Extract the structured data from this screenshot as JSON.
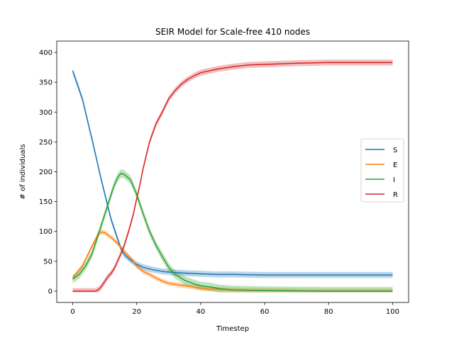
{
  "chart_data": {
    "type": "line",
    "title": "SEIR Model for Scale-free 410 nodes",
    "xlabel": "Timestep",
    "ylabel": "# of individuals",
    "xlim": [
      -5,
      105
    ],
    "ylim": [
      -19,
      419
    ],
    "xticks": [
      0,
      20,
      40,
      60,
      80,
      100
    ],
    "yticks": [
      0,
      50,
      100,
      150,
      200,
      250,
      300,
      350,
      400
    ],
    "grid": false,
    "legend_position": "center-right",
    "series": [
      {
        "name": "S",
        "color": "#1f77b4",
        "band": 5,
        "points": [
          [
            0,
            369
          ],
          [
            3,
            322
          ],
          [
            6,
            255
          ],
          [
            9,
            185
          ],
          [
            12,
            120
          ],
          [
            14,
            88
          ],
          [
            15,
            72
          ],
          [
            16,
            62
          ],
          [
            18,
            52
          ],
          [
            20,
            45
          ],
          [
            22,
            40
          ],
          [
            25,
            36
          ],
          [
            28,
            33
          ],
          [
            32,
            31
          ],
          [
            36,
            30
          ],
          [
            40,
            29
          ],
          [
            45,
            28
          ],
          [
            50,
            28
          ],
          [
            60,
            27
          ],
          [
            70,
            27
          ],
          [
            80,
            27
          ],
          [
            90,
            27
          ],
          [
            100,
            27
          ]
        ]
      },
      {
        "name": "E",
        "color": "#ff7f0e",
        "band": 4,
        "points": [
          [
            0,
            22
          ],
          [
            3,
            42
          ],
          [
            6,
            75
          ],
          [
            8,
            96
          ],
          [
            9,
            99
          ],
          [
            10,
            98
          ],
          [
            12,
            90
          ],
          [
            14,
            80
          ],
          [
            16,
            67
          ],
          [
            18,
            56
          ],
          [
            20,
            42
          ],
          [
            22,
            33
          ],
          [
            24,
            28
          ],
          [
            26,
            22
          ],
          [
            28,
            17
          ],
          [
            30,
            13
          ],
          [
            35,
            9
          ],
          [
            40,
            5
          ],
          [
            45,
            3
          ],
          [
            50,
            2
          ],
          [
            55,
            1.5
          ],
          [
            60,
            1
          ],
          [
            70,
            0.5
          ],
          [
            80,
            0
          ],
          [
            90,
            0
          ],
          [
            100,
            0
          ]
        ]
      },
      {
        "name": "I",
        "color": "#2ca02c",
        "band": 7,
        "points": [
          [
            0,
            20
          ],
          [
            2,
            28
          ],
          [
            4,
            42
          ],
          [
            6,
            62
          ],
          [
            8,
            95
          ],
          [
            10,
            128
          ],
          [
            12,
            162
          ],
          [
            13,
            178
          ],
          [
            14,
            190
          ],
          [
            15,
            197
          ],
          [
            16,
            196
          ],
          [
            18,
            187
          ],
          [
            19,
            175
          ],
          [
            20,
            162
          ],
          [
            22,
            130
          ],
          [
            24,
            100
          ],
          [
            26,
            77
          ],
          [
            28,
            58
          ],
          [
            30,
            40
          ],
          [
            32,
            28
          ],
          [
            35,
            18
          ],
          [
            38,
            12
          ],
          [
            40,
            9
          ],
          [
            43,
            7
          ],
          [
            46,
            4
          ],
          [
            50,
            2
          ],
          [
            55,
            1.5
          ],
          [
            60,
            1
          ],
          [
            70,
            0.5
          ],
          [
            80,
            0
          ],
          [
            90,
            0
          ],
          [
            100,
            0
          ]
        ]
      },
      {
        "name": "R",
        "color": "#d62728",
        "band": 5,
        "points": [
          [
            0,
            0
          ],
          [
            4,
            0
          ],
          [
            7,
            0
          ],
          [
            8,
            2
          ],
          [
            9,
            8
          ],
          [
            10,
            16
          ],
          [
            11,
            24
          ],
          [
            12,
            30
          ],
          [
            13,
            38
          ],
          [
            14,
            50
          ],
          [
            15,
            62
          ],
          [
            16,
            75
          ],
          [
            17,
            92
          ],
          [
            18,
            110
          ],
          [
            19,
            130
          ],
          [
            20,
            155
          ],
          [
            21,
            178
          ],
          [
            22,
            205
          ],
          [
            23,
            228
          ],
          [
            24,
            250
          ],
          [
            26,
            280
          ],
          [
            28,
            300
          ],
          [
            30,
            322
          ],
          [
            32,
            336
          ],
          [
            34,
            347
          ],
          [
            36,
            355
          ],
          [
            38,
            361
          ],
          [
            40,
            366
          ],
          [
            45,
            372
          ],
          [
            50,
            376
          ],
          [
            55,
            379
          ],
          [
            60,
            380
          ],
          [
            70,
            382
          ],
          [
            80,
            383
          ],
          [
            90,
            383
          ],
          [
            100,
            383
          ]
        ]
      }
    ]
  }
}
